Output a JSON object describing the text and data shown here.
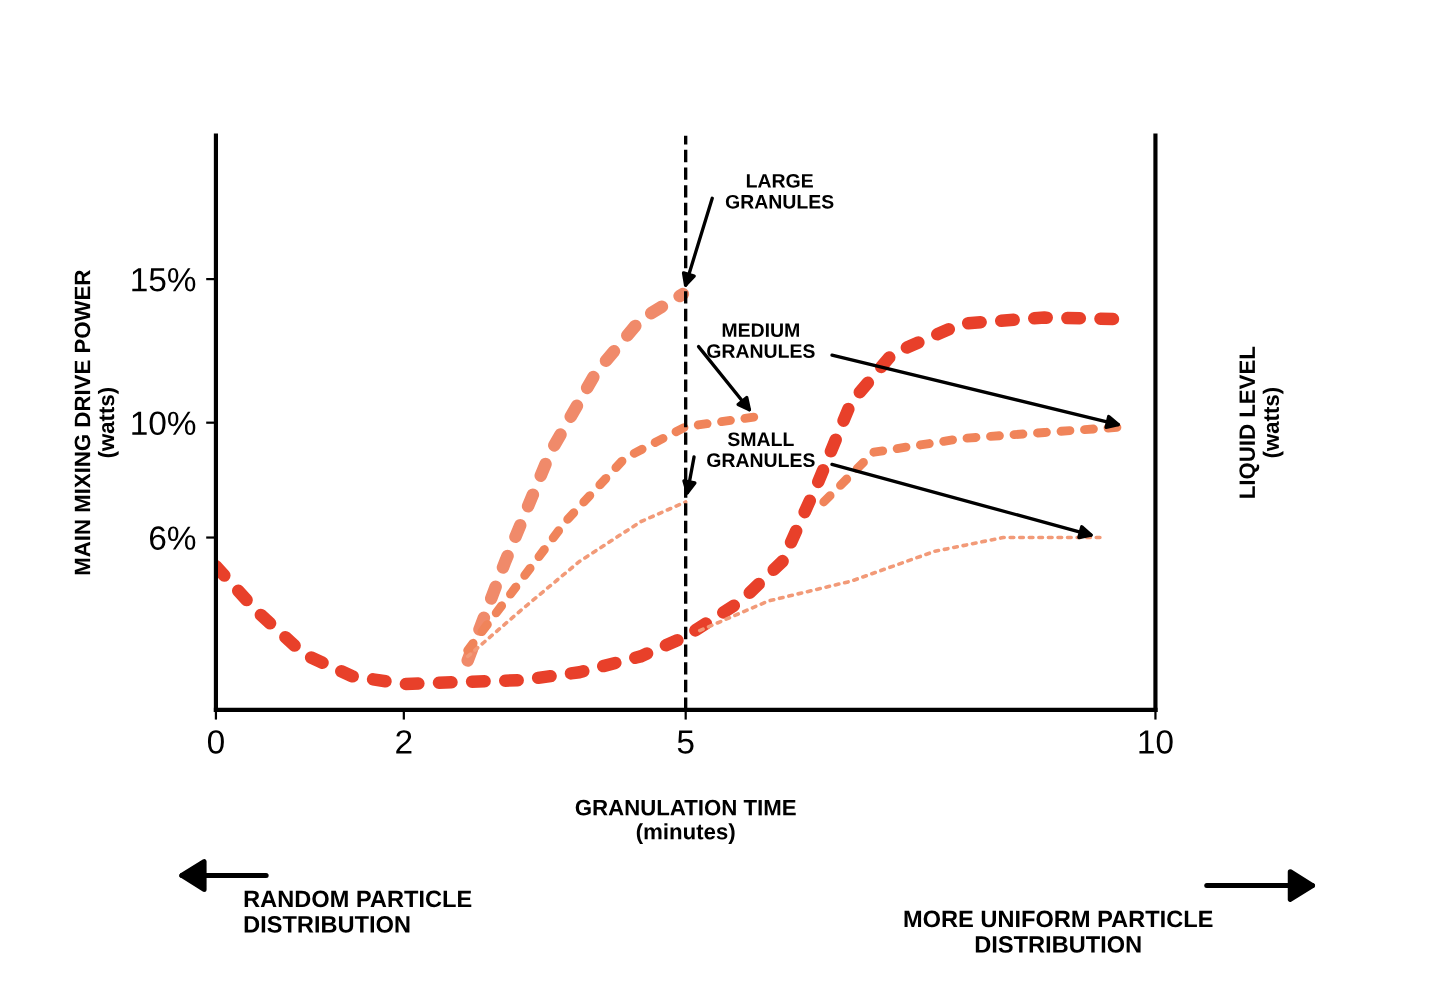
{
  "chart_data": {
    "type": "line",
    "xlabel": "GRANULATION TIME\n(minutes)",
    "ylabel": "MAIN MIXING DRIVE POWER\n(watts)",
    "y2label": "LIQUID LEVEL\n(watts)",
    "xlim": [
      0,
      10
    ],
    "xticks": [
      0,
      2,
      5,
      10
    ],
    "ylim": [
      0,
      20
    ],
    "yticks": [
      {
        "value": 6,
        "label": "6%"
      },
      {
        "value": 10,
        "label": "10%"
      },
      {
        "value": 15,
        "label": "15%"
      }
    ],
    "grid": false,
    "series": [
      {
        "color": "#e8402a",
        "marker": "none",
        "line_style": "dotted",
        "x": [
          0,
          0.43,
          0.94,
          1.45,
          2,
          2.6,
          3.24,
          3.87,
          4.52,
          5,
          5.59,
          6.03,
          6.41,
          6.76,
          7.2,
          7.94,
          8.82,
          9.7
        ],
        "values": [
          5.0,
          3.45,
          1.93,
          1.17,
          0.9,
          0.97,
          1.03,
          1.31,
          1.86,
          2.55,
          3.79,
          5.17,
          7.93,
          10.7,
          12.4,
          13.45,
          13.66,
          13.6
        ]
      },
      {
        "color": "#f08a6a",
        "marker": "none",
        "line_style": "dotted",
        "x": [
          2.68,
          3.08,
          3.56,
          4.04,
          4.52,
          4.97
        ],
        "values": [
          1.72,
          5.17,
          8.97,
          11.72,
          13.59,
          14.48
        ]
      },
      {
        "color": "#f0845a",
        "marker": "none",
        "line_style": "dotted",
        "x": [
          2.68,
          3.24,
          3.72,
          4.35,
          5,
          5.74,
          6.0,
          6.47,
          7,
          7.94,
          8.82,
          9.7
        ],
        "values": [
          2.07,
          4.48,
          6.55,
          8.76,
          9.86,
          10.2,
          null,
          7.24,
          8.97,
          9.45,
          9.66,
          9.86
        ]
      },
      {
        "color": "#f29a78",
        "marker": "none",
        "line_style": "dotted",
        "x": [
          2.68,
          3.24,
          3.87,
          4.52,
          5,
          5.1,
          5.15,
          5.88,
          6.76,
          7.65,
          8.38,
          9.41
        ],
        "values": [
          1.86,
          3.45,
          5.17,
          6.55,
          7.24,
          null,
          2.76,
          3.79,
          4.48,
          5.52,
          6,
          6
        ]
      }
    ],
    "ref_lines": [
      {
        "axis": "x",
        "value": 5,
        "line_style": "dashed",
        "color": "#000000"
      }
    ],
    "annotations": [
      {
        "text": "LARGE\nGRANULES",
        "x": 4.97,
        "y": 14.48
      },
      {
        "text": "MEDIUM\nGRANULES",
        "x": 5.74,
        "y": 10.2
      },
      {
        "text": "SMALL\nGRANULES",
        "x": 5,
        "y": 7.24
      },
      "RANDOM PARTICLE\nDISTRIBUTION",
      "MORE UNIFORM PARTICLE\nDISTRIBUTION"
    ]
  }
}
